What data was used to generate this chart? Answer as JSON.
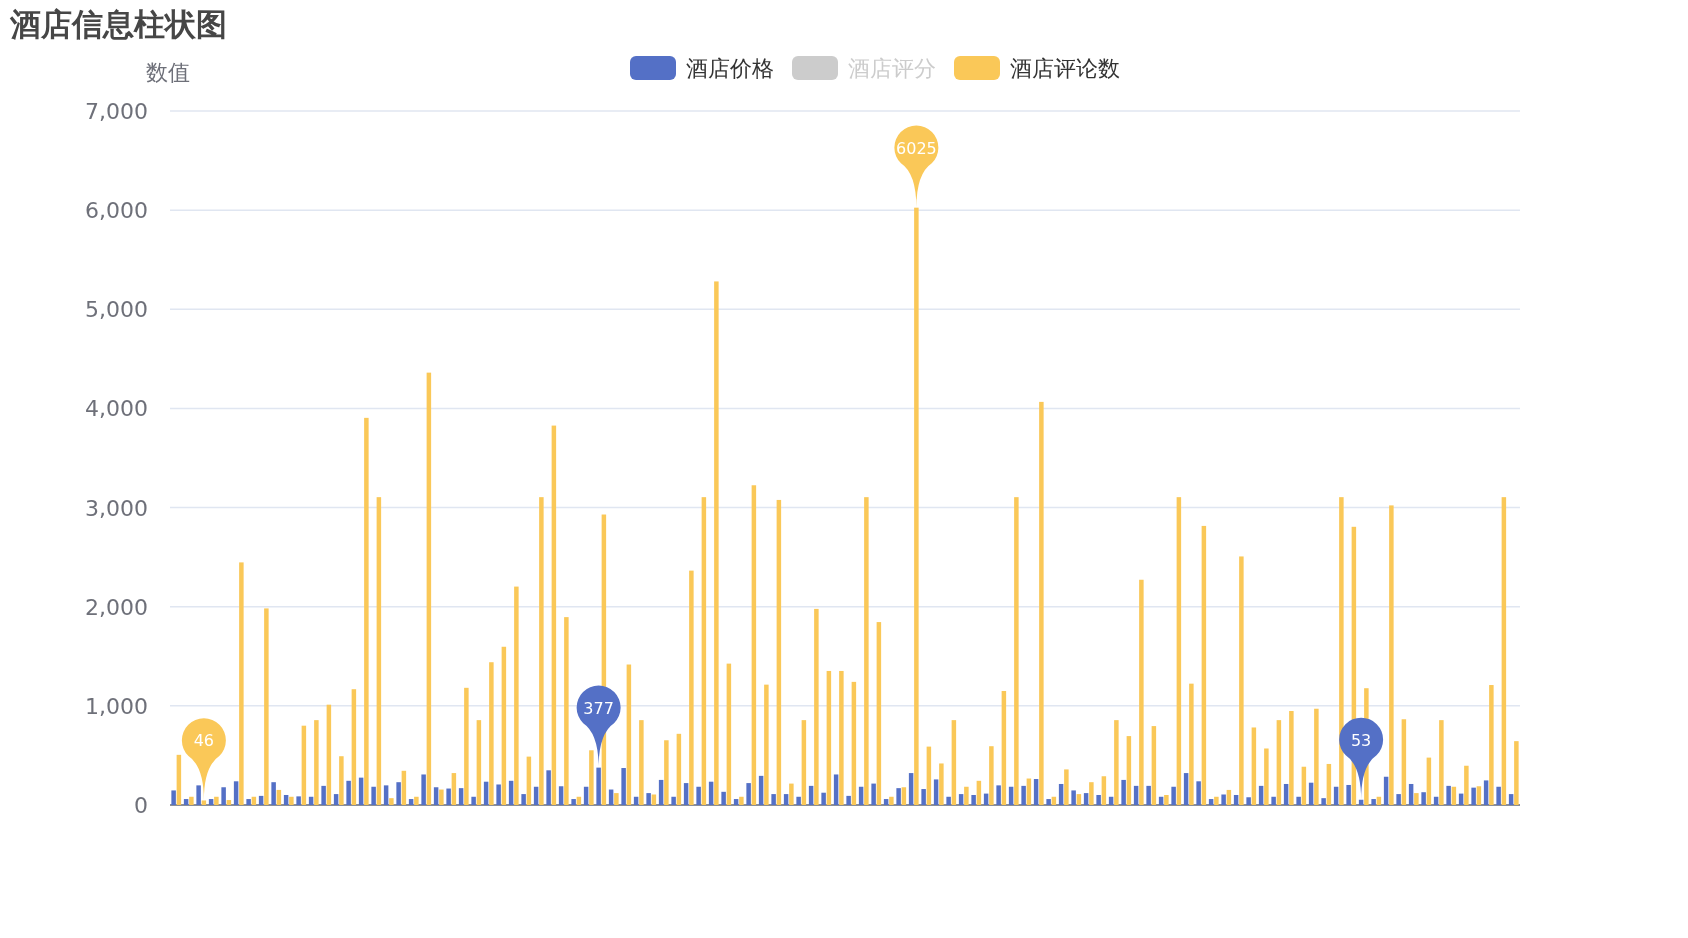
{
  "chart_data": {
    "type": "bar",
    "title": "酒店信息柱状图",
    "ylabel": "数值",
    "categories": [
      null,
      null,
      null,
      null,
      null,
      null,
      null,
      null,
      null,
      null,
      null,
      null,
      null,
      null,
      null,
      null,
      null,
      null,
      null,
      null,
      null,
      null,
      null,
      null,
      null,
      null,
      null,
      null,
      null,
      null,
      null,
      null,
      null,
      null,
      null,
      null,
      null,
      null,
      null,
      null,
      null,
      null,
      null,
      null,
      null,
      null,
      null,
      null,
      null,
      null,
      null,
      null,
      null,
      null,
      null,
      null,
      null,
      null,
      null,
      null,
      null,
      null,
      null,
      null,
      null,
      null,
      null,
      null,
      null,
      null,
      null,
      null,
      null,
      null,
      null,
      null,
      null,
      null,
      null,
      null,
      null,
      null,
      null,
      null,
      null,
      null,
      null,
      null,
      null,
      null,
      null,
      null,
      null,
      null,
      null,
      null,
      null,
      null,
      null,
      null,
      null,
      null,
      null,
      null,
      null,
      null,
      null,
      null
    ],
    "series": [
      {
        "name": "酒店价格",
        "color": "#5470c6",
        "values": [
          147,
          60,
          198,
          60,
          179,
          239,
          60,
          92,
          230,
          101,
          87,
          83,
          193,
          110,
          244,
          276,
          184,
          198,
          230,
          60,
          308,
          179,
          166,
          170,
          83,
          235,
          207,
          244,
          110,
          184,
          350,
          189,
          60,
          184,
          377,
          156,
          373,
          83,
          120,
          253,
          83,
          221,
          184,
          235,
          133,
          60,
          221,
          294,
          110,
          110,
          83,
          193,
          124,
          308,
          92,
          184,
          216,
          60,
          170,
          322,
          161,
          258,
          83,
          110,
          101,
          115,
          198,
          184,
          193,
          262,
          60,
          212,
          147,
          120,
          101,
          83,
          253,
          193,
          193,
          83,
          184,
          322,
          239,
          60,
          106,
          101,
          78,
          193,
          83,
          212,
          83,
          225,
          69,
          184,
          202,
          53,
          60,
          285,
          110,
          212,
          129,
          83,
          193,
          115,
          175,
          248,
          184,
          110
        ],
        "value_labels": [
          null,
          null,
          null,
          null,
          null,
          null,
          null,
          null,
          null,
          null,
          null,
          null,
          null,
          null,
          null,
          null,
          null,
          null,
          null,
          null,
          null,
          null,
          null,
          null,
          null,
          null,
          null,
          null,
          null,
          null,
          null,
          null,
          null,
          null,
          "377",
          null,
          null,
          null,
          null,
          null,
          null,
          null,
          null,
          null,
          null,
          null,
          null,
          null,
          null,
          null,
          null,
          null,
          null,
          null,
          null,
          null,
          null,
          null,
          null,
          null,
          null,
          null,
          null,
          null,
          null,
          null,
          null,
          null,
          null,
          null,
          null,
          null,
          null,
          null,
          null,
          null,
          null,
          null,
          null,
          null,
          null,
          null,
          null,
          null,
          null,
          null,
          null,
          null,
          null,
          null,
          null,
          null,
          null,
          null,
          null,
          "53",
          null,
          null,
          null,
          null,
          null,
          null,
          null,
          null,
          null,
          null,
          null,
          null
        ]
      },
      {
        "name": "酒店评分",
        "color": "#cccccc",
        "values": [
          null,
          null,
          null,
          null,
          null,
          null,
          null,
          null,
          null,
          null,
          null,
          null,
          null,
          null,
          null,
          null,
          null,
          null,
          null,
          null,
          null,
          null,
          null,
          null,
          null,
          null,
          null,
          null,
          null,
          null,
          null,
          null,
          null,
          null,
          null,
          null,
          null,
          null,
          null,
          null,
          null,
          null,
          null,
          null,
          null,
          null,
          null,
          null,
          null,
          null,
          null,
          null,
          null,
          null,
          null,
          null,
          null,
          null,
          null,
          null,
          null,
          null,
          null,
          null,
          null,
          null,
          null,
          null,
          null,
          null,
          null,
          null,
          null,
          null,
          null,
          null,
          null,
          null,
          null,
          null,
          null,
          null,
          null,
          null,
          null,
          null,
          null,
          null,
          null,
          null,
          null,
          null,
          null,
          null,
          null,
          null,
          null,
          null,
          null,
          null,
          null,
          null,
          null,
          null,
          null,
          null,
          null,
          null
        ]
      },
      {
        "name": "酒店评论数",
        "color": "#fac858",
        "values": [
          506,
          83,
          46,
          83,
          50,
          2447,
          83,
          1983,
          152,
          83,
          800,
          856,
          1012,
          492,
          1168,
          3905,
          3105,
          69,
          345,
          83,
          4361,
          156,
          322,
          1182,
          856,
          1440,
          1596,
          2203,
          488,
          3105,
          3827,
          1895,
          83,
          552,
          2930,
          120,
          1417,
          856,
          106,
          653,
          718,
          2364,
          3105,
          5281,
          1426,
          83,
          3225,
          1214,
          3077,
          216,
          856,
          1978,
          1352,
          1352,
          1242,
          3105,
          1845,
          83,
          179,
          6025,
          589,
          419,
          856,
          184,
          244,
          593,
          1150,
          3105,
          267,
          4066,
          83,
          359,
          110,
          230,
          290,
          856,
          695,
          2272,
          796,
          101,
          3105,
          1224,
          2815,
          83,
          152,
          2507,
          782,
          570,
          856,
          948,
          386,
          971,
          414,
          3105,
          2806,
          1178,
          83,
          3022,
          865,
          120,
          478,
          856,
          184,
          396,
          189,
          1210,
          3105,
          644
        ],
        "value_labels": [
          null,
          null,
          "46",
          null,
          null,
          null,
          null,
          null,
          null,
          null,
          null,
          null,
          null,
          null,
          null,
          null,
          null,
          null,
          null,
          null,
          null,
          null,
          null,
          null,
          null,
          null,
          null,
          null,
          null,
          null,
          null,
          null,
          null,
          null,
          null,
          null,
          null,
          null,
          null,
          null,
          null,
          null,
          null,
          null,
          null,
          null,
          null,
          null,
          null,
          null,
          null,
          null,
          null,
          null,
          null,
          null,
          null,
          null,
          null,
          "6025",
          null,
          null,
          null,
          null,
          null,
          null,
          null,
          null,
          null,
          null,
          null,
          null,
          null,
          null,
          null,
          null,
          null,
          null,
          null,
          null,
          null,
          null,
          null,
          null,
          null,
          null,
          null,
          null,
          null,
          null,
          null,
          null,
          null,
          null,
          null,
          null,
          null,
          null,
          null,
          null,
          null,
          null,
          null,
          null,
          null,
          null,
          null,
          null
        ]
      }
    ],
    "ylim": [
      0,
      7000
    ],
    "yticks": [
      0,
      {
        "value": 1000,
        "label": "1,000"
      },
      {
        "value": 2000,
        "label": "2,000"
      },
      {
        "value": 3000,
        "label": "3,000"
      },
      {
        "value": 4000,
        "label": "4,000"
      },
      {
        "value": 5000,
        "label": "5,000"
      },
      {
        "value": 6000,
        "label": "6,000"
      },
      {
        "value": 7000,
        "label": "7,000"
      }
    ],
    "grid": "y",
    "legend": "top"
  }
}
